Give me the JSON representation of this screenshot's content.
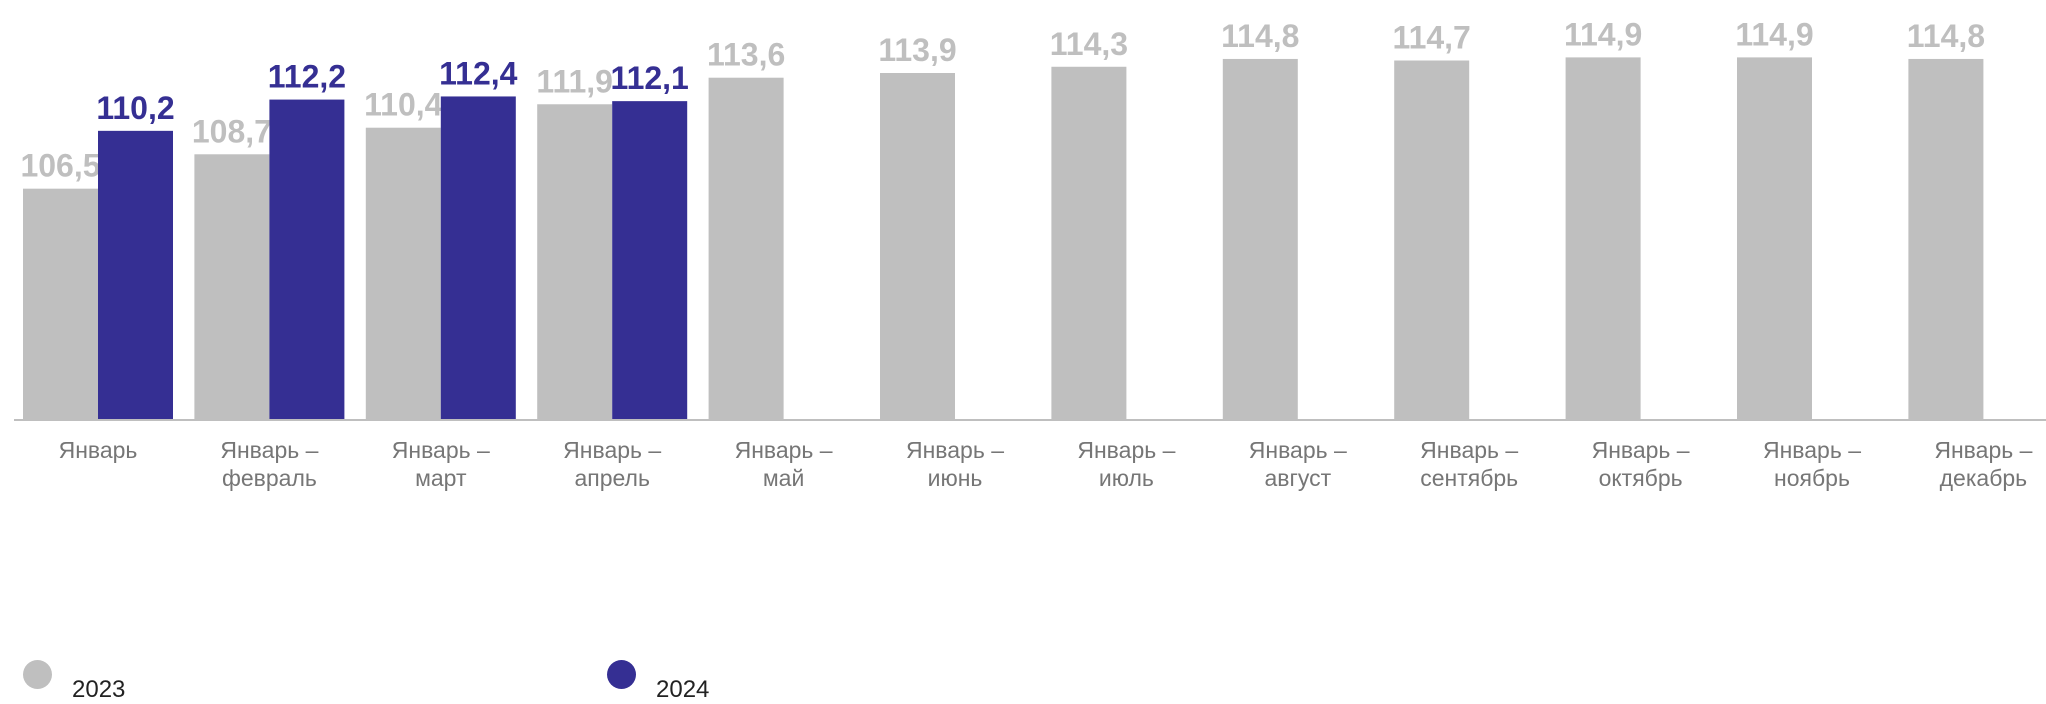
{
  "chart_data": {
    "type": "bar",
    "categories": [
      [
        "Январь"
      ],
      [
        "Январь –",
        "февраль"
      ],
      [
        "Январь –",
        "март"
      ],
      [
        "Январь –",
        "апрель"
      ],
      [
        "Январь –",
        "май"
      ],
      [
        "Январь –",
        "июнь"
      ],
      [
        "Январь –",
        "июль"
      ],
      [
        "Январь –",
        "август"
      ],
      [
        "Январь –",
        "сентябрь"
      ],
      [
        "Январь –",
        "октябрь"
      ],
      [
        "Январь –",
        "ноябрь"
      ],
      [
        "Январь –",
        "декабрь"
      ]
    ],
    "series": [
      {
        "name": "2023",
        "color": "#bfbfbf",
        "values": [
          106.5,
          108.7,
          110.4,
          111.9,
          113.6,
          113.9,
          114.3,
          114.8,
          114.7,
          114.9,
          114.9,
          114.8
        ],
        "labels": [
          "106,5",
          "108,7",
          "110,4",
          "111,9",
          "113,6",
          "113,9",
          "114,3",
          "114,8",
          "114,7",
          "114,9",
          "114,9",
          "114,8"
        ]
      },
      {
        "name": "2024",
        "color": "#352f93",
        "values": [
          110.2,
          112.2,
          112.4,
          112.1,
          null,
          null,
          null,
          null,
          null,
          null,
          null,
          null
        ],
        "labels": [
          "110,2",
          "112,2",
          "112,4",
          "112,1",
          "",
          "",
          "",
          "",
          "",
          "",
          "",
          ""
        ]
      }
    ],
    "title": "",
    "xlabel": "",
    "ylabel": "",
    "ylim": [
      91.7,
      115.5
    ],
    "grid": false,
    "legend_position": "bottom-left"
  }
}
